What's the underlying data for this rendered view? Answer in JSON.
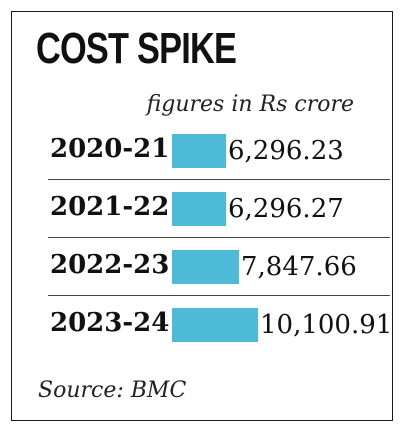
{
  "title": "COST SPIKE",
  "unit_note": "figures in Rs crore",
  "source": "Source: BMC",
  "colors": {
    "bar": "#4dbad7",
    "text": "#111111",
    "border": "#1a1a1a"
  },
  "chart_data": {
    "type": "bar",
    "orientation": "horizontal",
    "title": "COST SPIKE",
    "subtitle": "figures in Rs crore",
    "categories": [
      "2020-21",
      "2021-22",
      "2022-23",
      "2023-24"
    ],
    "values": [
      6296.23,
      6296.27,
      7847.66,
      10100.91
    ],
    "value_labels": [
      "6,296.23",
      "6,296.27",
      "7,847.66",
      "10,100.91"
    ],
    "xlabel": "",
    "ylabel": "",
    "grid": false,
    "legend": "none"
  }
}
